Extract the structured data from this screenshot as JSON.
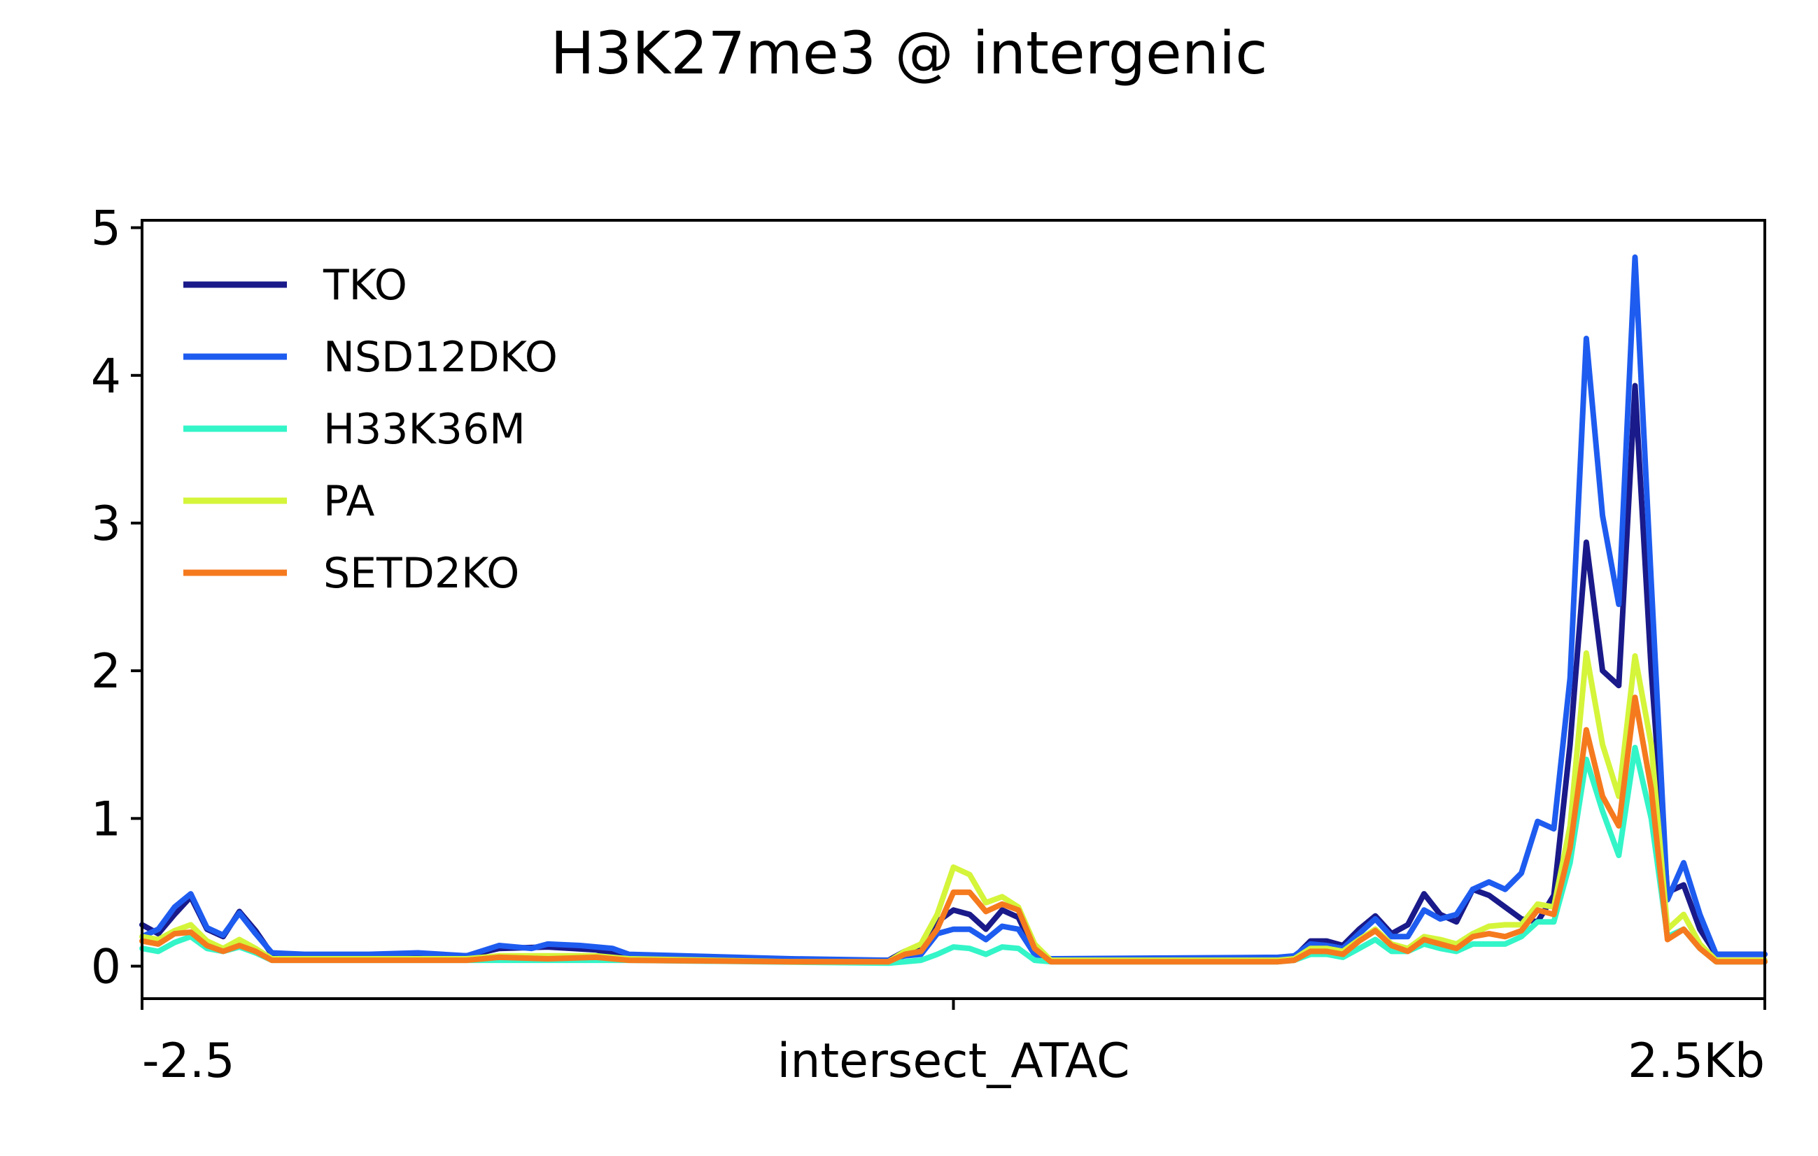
{
  "chart_data": {
    "type": "line",
    "title": "H3K27me3 @ intergenic",
    "xlabel": "",
    "ylabel": "",
    "xlim": [
      0,
      100
    ],
    "ylim": [
      -0.22,
      5.05
    ],
    "yticks": [
      0,
      1,
      2,
      3,
      4,
      5
    ],
    "xticks": [
      {
        "pos": 0,
        "label": "-2.5"
      },
      {
        "pos": 50,
        "label": "intersect_ATAC"
      },
      {
        "pos": 100,
        "label": "2.5Kb"
      }
    ],
    "legend_position": "top-left",
    "grid": false,
    "series": [
      {
        "name": "TKO",
        "color": "#1a1a8a",
        "points": [
          [
            0,
            0.28
          ],
          [
            1,
            0.22
          ],
          [
            2,
            0.35
          ],
          [
            3,
            0.47
          ],
          [
            4,
            0.25
          ],
          [
            5,
            0.2
          ],
          [
            6,
            0.37
          ],
          [
            7,
            0.24
          ],
          [
            8,
            0.08
          ],
          [
            10,
            0.07
          ],
          [
            20,
            0.07
          ],
          [
            22,
            0.12
          ],
          [
            25,
            0.13
          ],
          [
            28,
            0.11
          ],
          [
            30,
            0.06
          ],
          [
            40,
            0.04
          ],
          [
            46,
            0.04
          ],
          [
            47,
            0.1
          ],
          [
            48,
            0.12
          ],
          [
            49,
            0.3
          ],
          [
            50,
            0.38
          ],
          [
            51,
            0.35
          ],
          [
            52,
            0.25
          ],
          [
            53,
            0.38
          ],
          [
            54,
            0.33
          ],
          [
            55,
            0.1
          ],
          [
            56,
            0.04
          ],
          [
            70,
            0.04
          ],
          [
            71,
            0.06
          ],
          [
            72,
            0.17
          ],
          [
            73,
            0.17
          ],
          [
            74,
            0.14
          ],
          [
            75,
            0.25
          ],
          [
            76,
            0.34
          ],
          [
            77,
            0.22
          ],
          [
            78,
            0.28
          ],
          [
            79,
            0.49
          ],
          [
            80,
            0.35
          ],
          [
            81,
            0.3
          ],
          [
            82,
            0.52
          ],
          [
            83,
            0.48
          ],
          [
            84,
            0.4
          ],
          [
            85,
            0.32
          ],
          [
            86,
            0.3
          ],
          [
            87,
            0.48
          ],
          [
            88,
            1.5
          ],
          [
            89,
            2.87
          ],
          [
            90,
            2.0
          ],
          [
            91,
            1.9
          ],
          [
            92,
            3.93
          ],
          [
            93,
            2.0
          ],
          [
            94,
            0.5
          ],
          [
            95,
            0.55
          ],
          [
            96,
            0.25
          ],
          [
            97,
            0.08
          ],
          [
            100,
            0.08
          ]
        ]
      },
      {
        "name": "NSD12DKO",
        "color": "#1e5cf0",
        "points": [
          [
            0,
            0.2
          ],
          [
            1,
            0.25
          ],
          [
            2,
            0.4
          ],
          [
            3,
            0.49
          ],
          [
            4,
            0.26
          ],
          [
            5,
            0.21
          ],
          [
            6,
            0.36
          ],
          [
            7,
            0.22
          ],
          [
            8,
            0.09
          ],
          [
            10,
            0.08
          ],
          [
            14,
            0.08
          ],
          [
            17,
            0.09
          ],
          [
            20,
            0.07
          ],
          [
            22,
            0.14
          ],
          [
            24,
            0.12
          ],
          [
            25,
            0.15
          ],
          [
            27,
            0.14
          ],
          [
            29,
            0.12
          ],
          [
            30,
            0.08
          ],
          [
            40,
            0.05
          ],
          [
            46,
            0.04
          ],
          [
            47,
            0.07
          ],
          [
            48,
            0.08
          ],
          [
            49,
            0.22
          ],
          [
            50,
            0.25
          ],
          [
            51,
            0.25
          ],
          [
            52,
            0.18
          ],
          [
            53,
            0.27
          ],
          [
            54,
            0.25
          ],
          [
            55,
            0.08
          ],
          [
            56,
            0.05
          ],
          [
            70,
            0.06
          ],
          [
            71,
            0.07
          ],
          [
            72,
            0.15
          ],
          [
            73,
            0.14
          ],
          [
            74,
            0.12
          ],
          [
            75,
            0.22
          ],
          [
            76,
            0.32
          ],
          [
            77,
            0.2
          ],
          [
            78,
            0.2
          ],
          [
            79,
            0.38
          ],
          [
            80,
            0.32
          ],
          [
            81,
            0.35
          ],
          [
            82,
            0.52
          ],
          [
            83,
            0.57
          ],
          [
            84,
            0.52
          ],
          [
            85,
            0.63
          ],
          [
            86,
            0.98
          ],
          [
            87,
            0.93
          ],
          [
            88,
            1.95
          ],
          [
            89,
            4.25
          ],
          [
            90,
            3.05
          ],
          [
            91,
            2.45
          ],
          [
            92,
            4.8
          ],
          [
            93,
            2.6
          ],
          [
            94,
            0.45
          ],
          [
            95,
            0.7
          ],
          [
            96,
            0.35
          ],
          [
            97,
            0.08
          ],
          [
            100,
            0.08
          ]
        ]
      },
      {
        "name": "H33K36M",
        "color": "#33f5c8",
        "points": [
          [
            0,
            0.12
          ],
          [
            1,
            0.1
          ],
          [
            2,
            0.16
          ],
          [
            3,
            0.2
          ],
          [
            4,
            0.12
          ],
          [
            5,
            0.1
          ],
          [
            6,
            0.13
          ],
          [
            7,
            0.09
          ],
          [
            8,
            0.04
          ],
          [
            20,
            0.04
          ],
          [
            30,
            0.04
          ],
          [
            46,
            0.02
          ],
          [
            48,
            0.04
          ],
          [
            49,
            0.08
          ],
          [
            50,
            0.13
          ],
          [
            51,
            0.12
          ],
          [
            52,
            0.08
          ],
          [
            53,
            0.13
          ],
          [
            54,
            0.12
          ],
          [
            55,
            0.04
          ],
          [
            56,
            0.03
          ],
          [
            70,
            0.03
          ],
          [
            71,
            0.04
          ],
          [
            72,
            0.08
          ],
          [
            73,
            0.08
          ],
          [
            74,
            0.06
          ],
          [
            75,
            0.12
          ],
          [
            76,
            0.18
          ],
          [
            77,
            0.1
          ],
          [
            78,
            0.1
          ],
          [
            79,
            0.15
          ],
          [
            80,
            0.12
          ],
          [
            81,
            0.1
          ],
          [
            82,
            0.15
          ],
          [
            83,
            0.15
          ],
          [
            84,
            0.15
          ],
          [
            85,
            0.2
          ],
          [
            86,
            0.3
          ],
          [
            87,
            0.3
          ],
          [
            88,
            0.7
          ],
          [
            89,
            1.4
          ],
          [
            90,
            1.05
          ],
          [
            91,
            0.75
          ],
          [
            92,
            1.48
          ],
          [
            93,
            1.0
          ],
          [
            94,
            0.2
          ],
          [
            95,
            0.25
          ],
          [
            96,
            0.12
          ],
          [
            97,
            0.03
          ],
          [
            100,
            0.03
          ]
        ]
      },
      {
        "name": "PA",
        "color": "#d4f53a",
        "points": [
          [
            0,
            0.2
          ],
          [
            1,
            0.18
          ],
          [
            2,
            0.24
          ],
          [
            3,
            0.28
          ],
          [
            4,
            0.17
          ],
          [
            5,
            0.12
          ],
          [
            6,
            0.18
          ],
          [
            7,
            0.12
          ],
          [
            8,
            0.05
          ],
          [
            20,
            0.05
          ],
          [
            22,
            0.07
          ],
          [
            25,
            0.07
          ],
          [
            28,
            0.07
          ],
          [
            30,
            0.05
          ],
          [
            40,
            0.03
          ],
          [
            46,
            0.03
          ],
          [
            47,
            0.1
          ],
          [
            48,
            0.15
          ],
          [
            49,
            0.35
          ],
          [
            50,
            0.67
          ],
          [
            51,
            0.62
          ],
          [
            52,
            0.43
          ],
          [
            53,
            0.47
          ],
          [
            54,
            0.4
          ],
          [
            55,
            0.15
          ],
          [
            56,
            0.04
          ],
          [
            70,
            0.04
          ],
          [
            71,
            0.05
          ],
          [
            72,
            0.12
          ],
          [
            73,
            0.12
          ],
          [
            74,
            0.1
          ],
          [
            75,
            0.18
          ],
          [
            76,
            0.25
          ],
          [
            77,
            0.15
          ],
          [
            78,
            0.12
          ],
          [
            79,
            0.2
          ],
          [
            80,
            0.18
          ],
          [
            81,
            0.15
          ],
          [
            82,
            0.22
          ],
          [
            83,
            0.27
          ],
          [
            84,
            0.28
          ],
          [
            85,
            0.28
          ],
          [
            86,
            0.42
          ],
          [
            87,
            0.4
          ],
          [
            88,
            0.95
          ],
          [
            89,
            2.12
          ],
          [
            90,
            1.5
          ],
          [
            91,
            1.15
          ],
          [
            92,
            2.1
          ],
          [
            93,
            1.5
          ],
          [
            94,
            0.25
          ],
          [
            95,
            0.35
          ],
          [
            96,
            0.15
          ],
          [
            97,
            0.04
          ],
          [
            100,
            0.04
          ]
        ]
      },
      {
        "name": "SETD2KO",
        "color": "#f57a1e",
        "points": [
          [
            0,
            0.17
          ],
          [
            1,
            0.15
          ],
          [
            2,
            0.22
          ],
          [
            3,
            0.23
          ],
          [
            4,
            0.14
          ],
          [
            5,
            0.1
          ],
          [
            6,
            0.14
          ],
          [
            7,
            0.1
          ],
          [
            8,
            0.04
          ],
          [
            20,
            0.04
          ],
          [
            22,
            0.06
          ],
          [
            25,
            0.05
          ],
          [
            28,
            0.06
          ],
          [
            30,
            0.04
          ],
          [
            40,
            0.03
          ],
          [
            46,
            0.03
          ],
          [
            47,
            0.08
          ],
          [
            48,
            0.1
          ],
          [
            49,
            0.25
          ],
          [
            50,
            0.5
          ],
          [
            51,
            0.5
          ],
          [
            52,
            0.37
          ],
          [
            53,
            0.42
          ],
          [
            54,
            0.38
          ],
          [
            55,
            0.12
          ],
          [
            56,
            0.03
          ],
          [
            70,
            0.03
          ],
          [
            71,
            0.04
          ],
          [
            72,
            0.1
          ],
          [
            73,
            0.1
          ],
          [
            74,
            0.08
          ],
          [
            75,
            0.17
          ],
          [
            76,
            0.24
          ],
          [
            77,
            0.14
          ],
          [
            78,
            0.1
          ],
          [
            79,
            0.18
          ],
          [
            80,
            0.15
          ],
          [
            81,
            0.12
          ],
          [
            82,
            0.2
          ],
          [
            83,
            0.22
          ],
          [
            84,
            0.2
          ],
          [
            85,
            0.24
          ],
          [
            86,
            0.38
          ],
          [
            87,
            0.35
          ],
          [
            88,
            0.8
          ],
          [
            89,
            1.6
          ],
          [
            90,
            1.15
          ],
          [
            91,
            0.95
          ],
          [
            92,
            1.82
          ],
          [
            93,
            1.2
          ],
          [
            94,
            0.18
          ],
          [
            95,
            0.25
          ],
          [
            96,
            0.12
          ],
          [
            97,
            0.03
          ],
          [
            100,
            0.03
          ]
        ]
      }
    ]
  }
}
